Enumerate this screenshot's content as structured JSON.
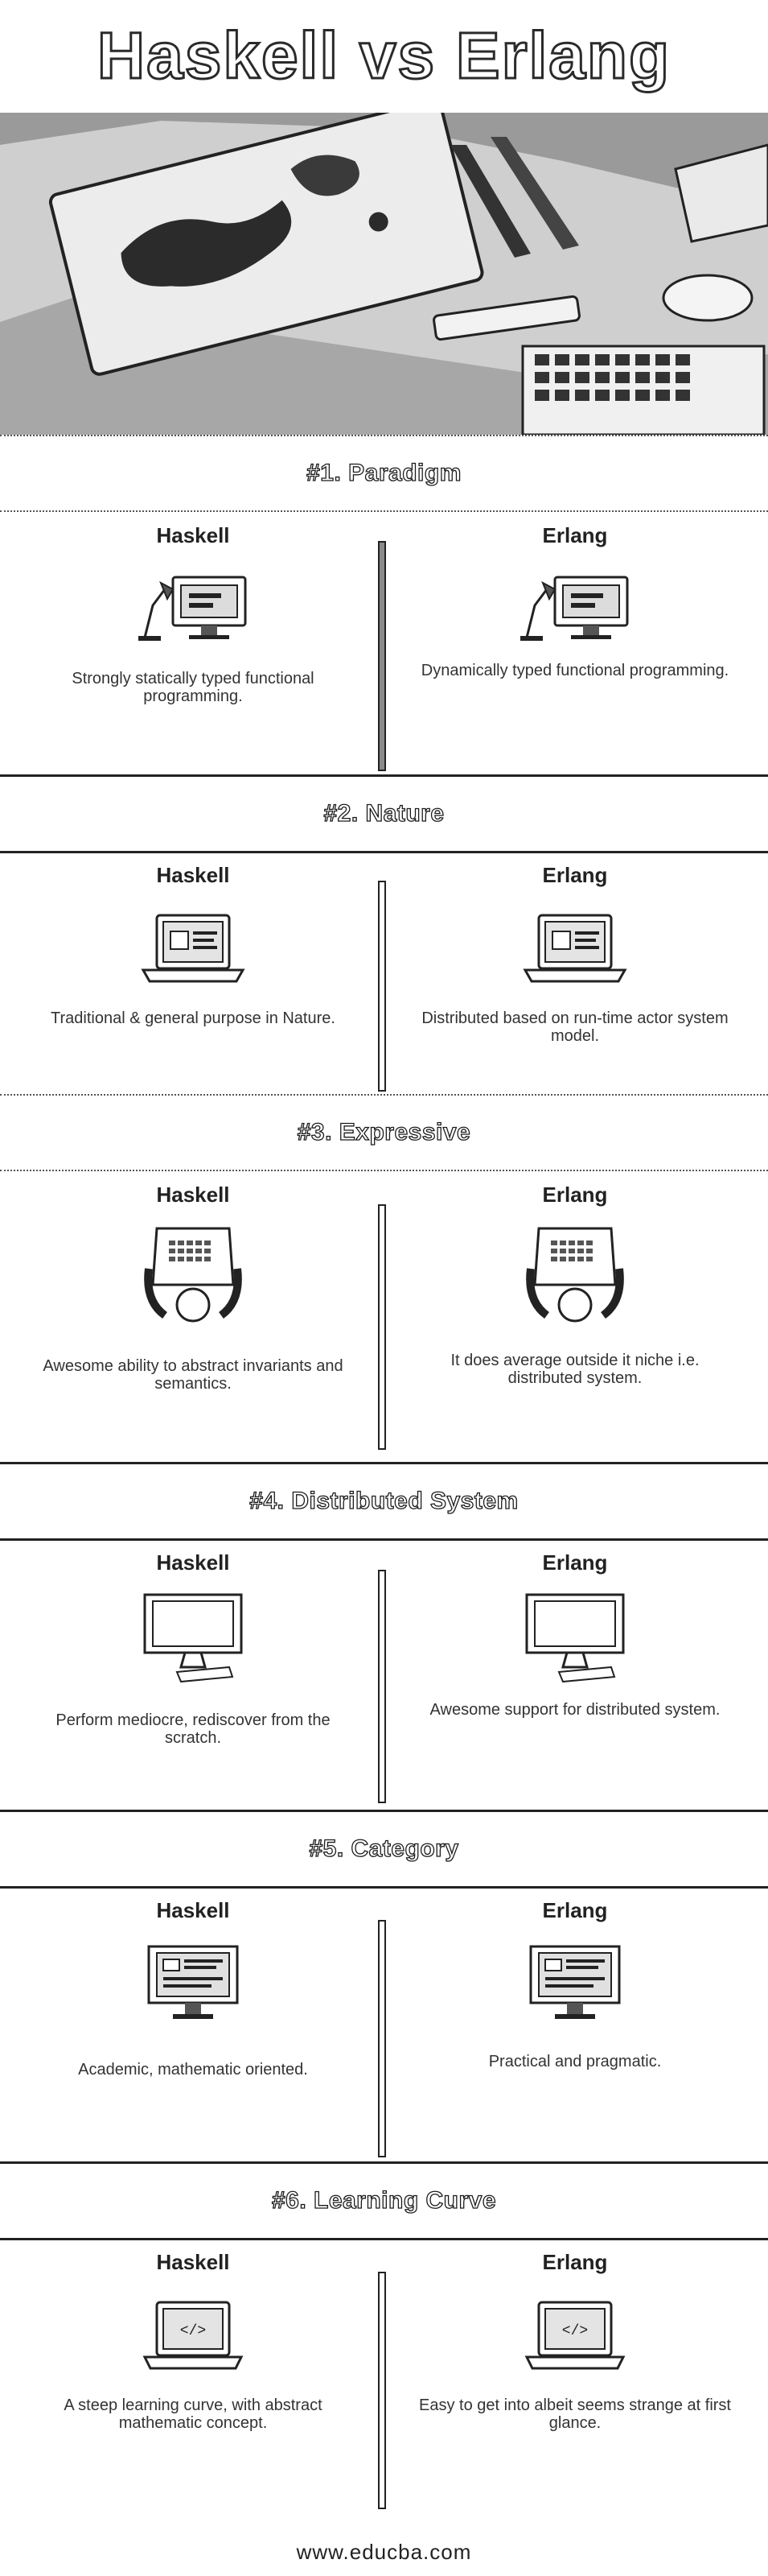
{
  "title": "Haskell vs Erlang",
  "columns": {
    "left": "Haskell",
    "right": "Erlang"
  },
  "sections": [
    {
      "header": "#1. Paradigm",
      "icon": "desk-lamp-monitor-icon",
      "left_text": "Strongly statically typed functional programming.",
      "right_text": "Dynamically typed functional programming."
    },
    {
      "header": "#2. Nature",
      "icon": "laptop-document-icon",
      "left_text": "Traditional & general purpose in Nature.",
      "right_text": "Distributed based on run-time actor system model."
    },
    {
      "header": "#3. Expressive",
      "icon": "person-at-computer-icon",
      "left_text": "Awesome ability to abstract invariants and semantics.",
      "right_text": "It does average outside it niche i.e. distributed system."
    },
    {
      "header": "#4. Distributed System",
      "icon": "desktop-monitor-keyboard-icon",
      "left_text": "Perform mediocre, rediscover from the scratch.",
      "right_text": "Awesome support for distributed system."
    },
    {
      "header": "#5. Category",
      "icon": "monitor-layout-icon",
      "left_text": "Academic, mathematic oriented.",
      "right_text": "Practical and pragmatic."
    },
    {
      "header": "#6. Learning Curve",
      "icon": "laptop-code-icon",
      "left_text": "A steep learning curve, with abstract mathematic concept.",
      "right_text": "Easy to get into albeit seems strange at first glance."
    }
  ],
  "footer": "www.educba.com"
}
